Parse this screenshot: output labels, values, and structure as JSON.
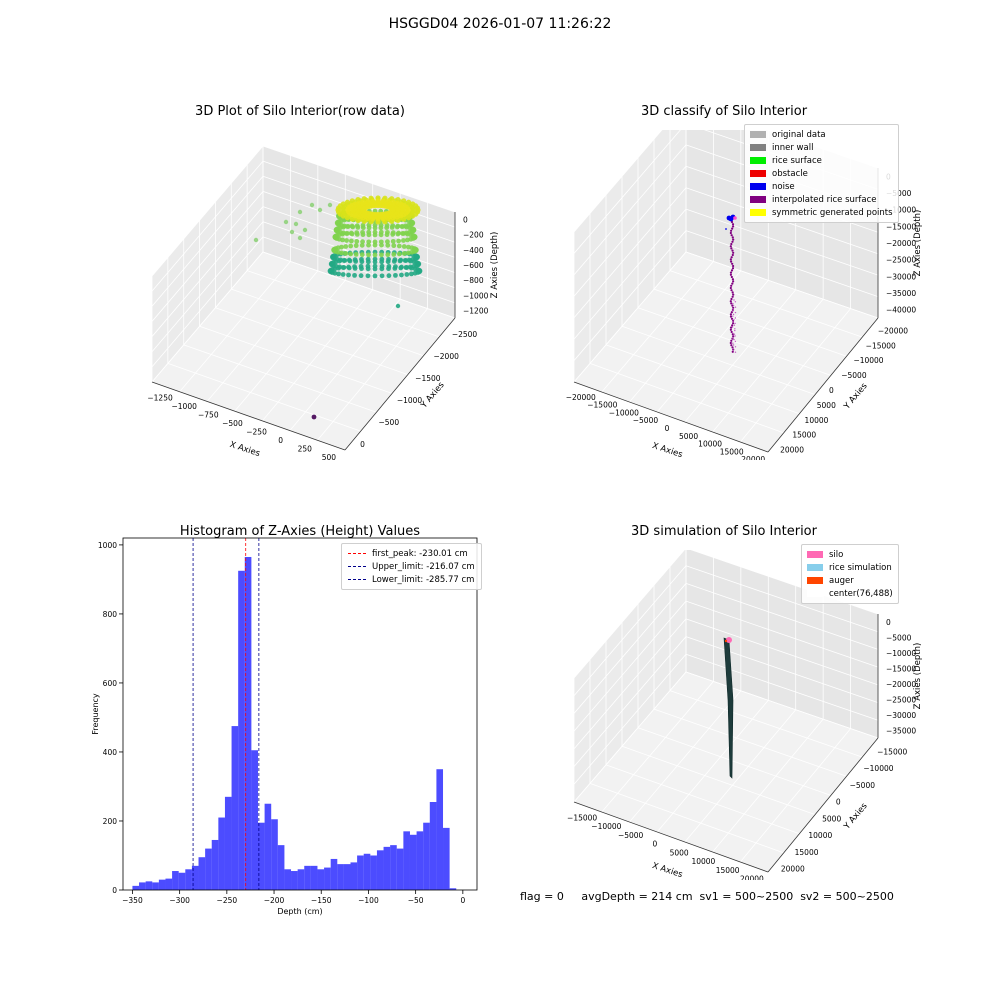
{
  "suptitle": "HSGGD04 2026-01-07 11:26:22",
  "footer": {
    "text": "flag = 0     avgDepth = 214 cm  sv1 = 500~2500  sv2 = 500~2500"
  },
  "chart_data": [
    {
      "type": "scatter",
      "projection": "3d",
      "title": "3D Plot of Silo Interior(row data)",
      "xlabel": "X Axies",
      "ylabel": "Y Axies",
      "zlabel": "Z Axies (Depth)",
      "xticks": [
        "−1250",
        "−1000",
        "−750",
        "−500",
        "−250",
        "0",
        "250",
        "500"
      ],
      "yticks": [
        "0",
        "−500",
        "−1000",
        "−1500",
        "−2000",
        "−2500"
      ],
      "zticks": [
        "0",
        "−200",
        "−400",
        "−600",
        "−800",
        "−1000",
        "−1200"
      ],
      "colormap": "viridis",
      "description_points": "dense cylindrical point cloud colored by depth",
      "colors": {
        "high": "#e8e31a",
        "mid": "#7fd34e",
        "low": "#22a884",
        "outlier": "#440154"
      }
    },
    {
      "type": "scatter",
      "projection": "3d",
      "title": "3D classify of Silo Interior",
      "xlabel": "X Axies",
      "ylabel": "Y Axies",
      "zlabel": "Z Axies (Depth)",
      "xticks": [
        "−20000",
        "−15000",
        "−10000",
        "−5000",
        "0",
        "5000",
        "10000",
        "15000",
        "20000"
      ],
      "yticks": [
        "20000",
        "15000",
        "10000",
        "5000",
        "0",
        "−5000",
        "−10000",
        "−15000",
        "−20000"
      ],
      "zticks": [
        "0",
        "−5000",
        "−10000",
        "−15000",
        "−20000",
        "−25000",
        "−30000",
        "−35000",
        "−40000"
      ],
      "legend": [
        {
          "label": "original data",
          "color": "#b0b0b0"
        },
        {
          "label": "inner wall",
          "color": "#808080"
        },
        {
          "label": "rice surface",
          "color": "#00ee00"
        },
        {
          "label": "obstacle",
          "color": "#ee0000"
        },
        {
          "label": "noise",
          "color": "#0000ee"
        },
        {
          "label": "interpolated rice surface",
          "color": "#800080"
        },
        {
          "label": "symmetric generated points",
          "color": "#ffff00"
        }
      ]
    },
    {
      "type": "bar",
      "title": "Histogram of Z-Axies (Height) Values",
      "xlabel": "Depth (cm)",
      "ylabel": "Frequency",
      "xlim": [
        -360,
        15
      ],
      "ylim": [
        0,
        1020
      ],
      "xticks": [
        -350,
        -300,
        -250,
        -200,
        -150,
        -100,
        -50,
        0
      ],
      "yticks": [
        0,
        200,
        400,
        600,
        800,
        1000
      ],
      "bar_color": "#0000ff",
      "bin_width": 7,
      "bin_starts": [
        -350,
        -343,
        -336,
        -329,
        -322,
        -315,
        -308,
        -301,
        -294,
        -287,
        -280,
        -273,
        -266,
        -259,
        -252,
        -245,
        -238,
        -231,
        -224,
        -217,
        -210,
        -203,
        -196,
        -189,
        -182,
        -175,
        -168,
        -161,
        -154,
        -147,
        -140,
        -133,
        -126,
        -119,
        -112,
        -105,
        -98,
        -91,
        -84,
        -77,
        -70,
        -63,
        -56,
        -49,
        -42,
        -35,
        -28,
        -21,
        -14,
        -7
      ],
      "values": [
        12,
        22,
        25,
        22,
        30,
        33,
        55,
        50,
        60,
        70,
        95,
        120,
        145,
        210,
        270,
        475,
        925,
        965,
        405,
        195,
        250,
        205,
        130,
        60,
        55,
        60,
        70,
        70,
        60,
        65,
        90,
        75,
        75,
        80,
        100,
        105,
        100,
        115,
        125,
        130,
        120,
        170,
        160,
        170,
        195,
        255,
        350,
        180,
        5,
        0
      ],
      "vlines": [
        {
          "label": "first_peak: -230.01 cm",
          "x": -230.01,
          "color": "#ff0000"
        },
        {
          "label": "Upper_limit: -216.07 cm",
          "x": -216.07,
          "color": "#00008b"
        },
        {
          "label": "Lower_limit: -285.77 cm",
          "x": -285.77,
          "color": "#00008b"
        }
      ]
    },
    {
      "type": "surface",
      "projection": "3d",
      "title": "3D simulation of Silo Interior",
      "xlabel": "X Axies",
      "ylabel": "Y Axies",
      "zlabel": "Z Axies (Depth)",
      "xticks": [
        "−15000",
        "−10000",
        "−5000",
        "0",
        "5000",
        "10000",
        "15000",
        "20000"
      ],
      "yticks": [
        "20000",
        "15000",
        "10000",
        "5000",
        "0",
        "−5000",
        "−10000",
        "−15000"
      ],
      "zticks": [
        "0",
        "−5000",
        "−10000",
        "−15000",
        "−20000",
        "−25000",
        "−30000",
        "−35000"
      ],
      "legend": [
        {
          "label": "silo",
          "color": "#ff69b4"
        },
        {
          "label": "rice simulation",
          "color": "#87ceeb"
        },
        {
          "label": "auger",
          "color": "#ff4500"
        },
        {
          "label": "center(76,488)",
          "color": "#ffffff"
        }
      ]
    }
  ]
}
